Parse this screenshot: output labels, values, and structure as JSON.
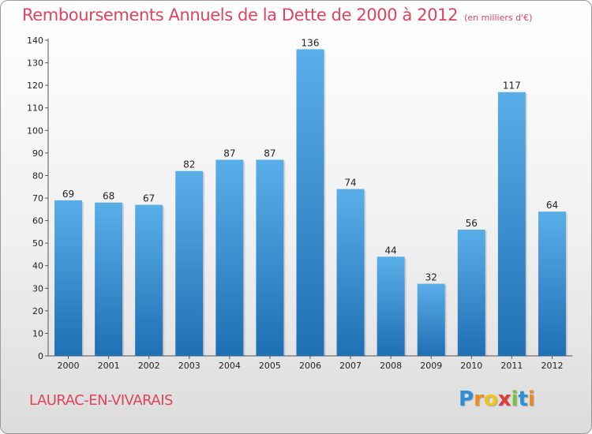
{
  "title": "Remboursements Annuels de la Dette de 2000 à 2012",
  "unit": "(en milliers d'€)",
  "commune": "LAURAC-EN-VIVARAIS",
  "logo": {
    "letters": [
      "P",
      "r",
      "o",
      "x",
      "i",
      "t",
      "i"
    ],
    "colors": [
      "#2a8fd8",
      "#f08a1c",
      "#f0c419",
      "#e23b3b",
      "#7ac043",
      "#2a8fd8",
      "#f08a1c"
    ]
  },
  "colors": {
    "bar_top": "#5aaee8",
    "bar_bottom": "#1f6fb4",
    "title": "#e0445c"
  },
  "chart_data": {
    "type": "bar",
    "categories": [
      "2000",
      "2001",
      "2002",
      "2003",
      "2004",
      "2005",
      "2006",
      "2007",
      "2008",
      "2009",
      "2010",
      "2011",
      "2012"
    ],
    "values": [
      69,
      68,
      67,
      82,
      87,
      87,
      136,
      74,
      44,
      32,
      56,
      117,
      64
    ],
    "ylim": [
      0,
      140
    ],
    "yticks": [
      0,
      10,
      20,
      30,
      40,
      50,
      60,
      70,
      80,
      90,
      100,
      110,
      120,
      130,
      140
    ],
    "grid": false,
    "data_labels": true
  }
}
